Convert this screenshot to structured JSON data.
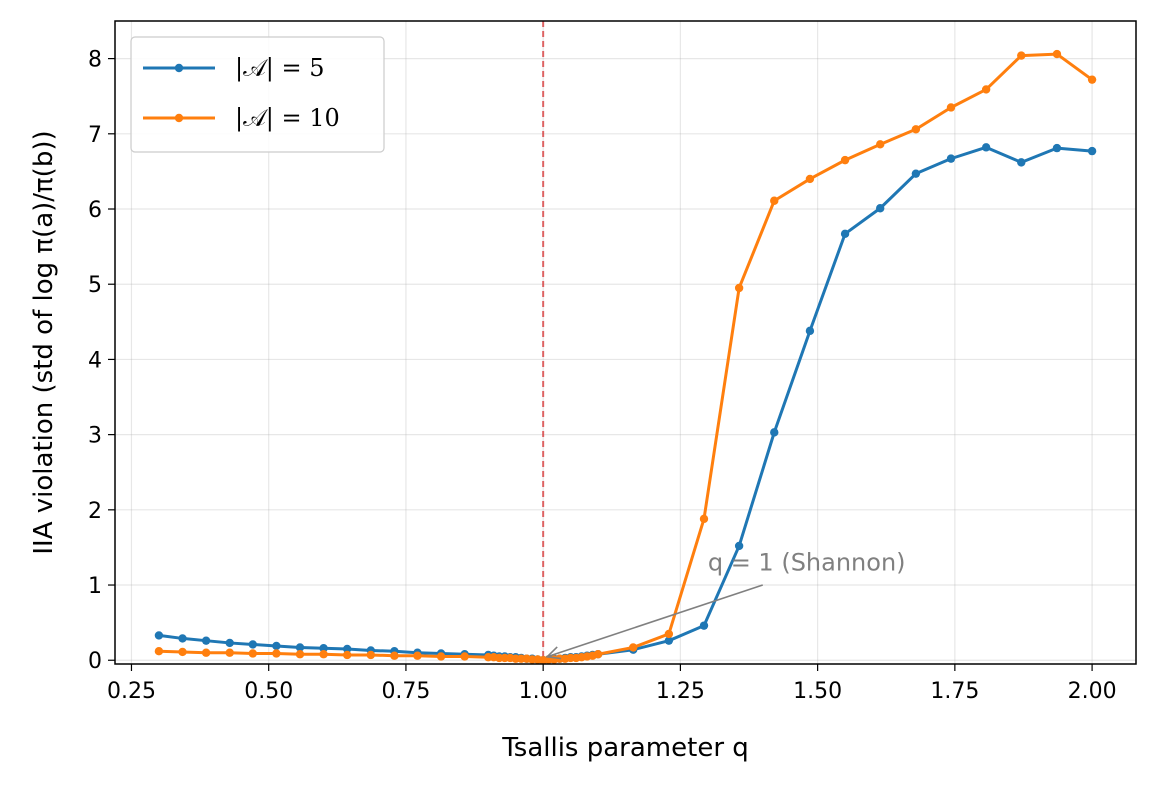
{
  "chart_data": {
    "type": "line",
    "xlabel": "Tsallis parameter q",
    "ylabel": "IIA violation (std of log π(a)/π(b))",
    "xlim": [
      0.22,
      2.08
    ],
    "ylim": [
      -0.05,
      8.5
    ],
    "xticks": [
      "0.25",
      "0.50",
      "0.75",
      "1.00",
      "1.25",
      "1.50",
      "1.75",
      "2.00"
    ],
    "yticks": [
      "0",
      "1",
      "2",
      "3",
      "4",
      "5",
      "6",
      "7",
      "8"
    ],
    "grid": true,
    "legend_position": "top-left",
    "reference_line": {
      "x": 1.0,
      "color": "#d62728",
      "style": "dashed"
    },
    "annotation": {
      "text": "q = 1 (Shannon)",
      "x": 1.0,
      "y": 0.02,
      "text_x": 1.3,
      "text_y": 1.3,
      "color": "#808080"
    },
    "series": [
      {
        "name": "|𝒜| = 5",
        "color": "#1f77b4",
        "x": [
          0.3,
          0.343,
          0.386,
          0.429,
          0.471,
          0.514,
          0.557,
          0.6,
          0.643,
          0.686,
          0.729,
          0.771,
          0.814,
          0.857,
          0.9,
          0.91,
          0.92,
          0.93,
          0.94,
          0.95,
          0.96,
          0.97,
          0.98,
          0.99,
          1.0,
          1.01,
          1.02,
          1.03,
          1.04,
          1.05,
          1.06,
          1.07,
          1.08,
          1.09,
          1.1,
          1.164,
          1.229,
          1.293,
          1.357,
          1.421,
          1.486,
          1.55,
          1.614,
          1.679,
          1.743,
          1.807,
          1.871,
          1.936,
          2.0
        ],
        "y": [
          0.33,
          0.29,
          0.26,
          0.23,
          0.21,
          0.19,
          0.17,
          0.16,
          0.15,
          0.13,
          0.12,
          0.1,
          0.09,
          0.08,
          0.07,
          0.06,
          0.05,
          0.05,
          0.04,
          0.04,
          0.03,
          0.02,
          0.02,
          0.01,
          0.0,
          0.01,
          0.02,
          0.02,
          0.03,
          0.04,
          0.04,
          0.05,
          0.06,
          0.07,
          0.08,
          0.14,
          0.26,
          0.46,
          1.52,
          3.03,
          4.38,
          5.67,
          6.01,
          6.47,
          6.67,
          6.82,
          6.62,
          6.81,
          6.77
        ]
      },
      {
        "name": "|𝒜| = 10",
        "color": "#ff7f0e",
        "x": [
          0.3,
          0.343,
          0.386,
          0.429,
          0.471,
          0.514,
          0.557,
          0.6,
          0.643,
          0.686,
          0.729,
          0.771,
          0.814,
          0.857,
          0.9,
          0.91,
          0.92,
          0.93,
          0.94,
          0.95,
          0.96,
          0.97,
          0.98,
          0.99,
          1.0,
          1.01,
          1.02,
          1.03,
          1.04,
          1.05,
          1.06,
          1.07,
          1.08,
          1.09,
          1.1,
          1.164,
          1.229,
          1.293,
          1.357,
          1.421,
          1.486,
          1.55,
          1.614,
          1.679,
          1.743,
          1.807,
          1.871,
          1.936,
          2.0
        ],
        "y": [
          0.12,
          0.11,
          0.1,
          0.1,
          0.09,
          0.09,
          0.08,
          0.08,
          0.07,
          0.07,
          0.06,
          0.06,
          0.05,
          0.05,
          0.04,
          0.04,
          0.03,
          0.03,
          0.03,
          0.02,
          0.02,
          0.02,
          0.01,
          0.01,
          0.0,
          0.01,
          0.01,
          0.02,
          0.02,
          0.03,
          0.03,
          0.04,
          0.05,
          0.06,
          0.08,
          0.17,
          0.35,
          1.88,
          4.95,
          6.11,
          6.4,
          6.65,
          6.86,
          7.06,
          7.35,
          7.59,
          8.04,
          8.06,
          7.72
        ]
      }
    ]
  }
}
